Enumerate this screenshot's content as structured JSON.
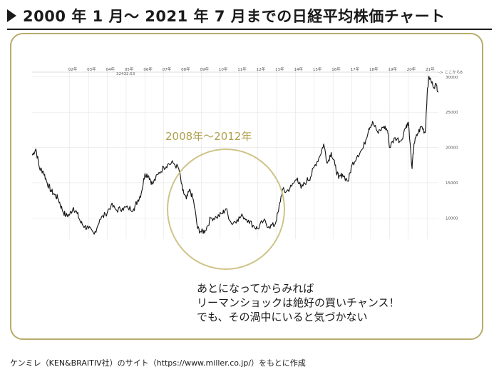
{
  "title": "2000 年 1 月〜 2021 年 7 月までの日経平均株価チャート",
  "colors": {
    "accent": "#b8ac6a",
    "line": "#111111",
    "grid": "#e4e4e4"
  },
  "chart_data": {
    "type": "line",
    "title": "",
    "x_tick_labels": [
      "02年",
      "03年",
      "04年",
      "05年",
      "06年",
      "07年",
      "08年",
      "09年",
      "10年",
      "11年",
      "12年",
      "13年",
      "14年",
      "15年",
      "16年",
      "17年",
      "18年",
      "19年",
      "20年",
      "21年"
    ],
    "y_tick_labels": [
      "30000",
      "25000",
      "20000",
      "15000",
      "10000"
    ],
    "ylim": [
      7000,
      31500
    ],
    "xlim": [
      2000.0,
      2021.6
    ],
    "readout": "32432.53",
    "corner_label": "-> ここから8",
    "highlight": {
      "label": "2008年〜2012年",
      "start": 2008,
      "end": 2012
    },
    "series": [
      {
        "x": [
          2000.0,
          2000.2,
          2000.4,
          2000.6,
          2000.8,
          2001.0,
          2001.2,
          2001.4,
          2001.6,
          2001.8,
          2002.0,
          2002.2,
          2002.4,
          2002.6,
          2002.8,
          2003.0,
          2003.3,
          2003.6,
          2003.9,
          2004.2,
          2004.5,
          2004.8,
          2005.1,
          2005.4,
          2005.6,
          2005.8,
          2006.0,
          2006.2,
          2006.4,
          2006.7,
          2007.0,
          2007.2,
          2007.5,
          2007.8,
          2008.0,
          2008.2,
          2008.4,
          2008.6,
          2008.8,
          2009.0,
          2009.2,
          2009.5,
          2009.8,
          2010.1,
          2010.3,
          2010.6,
          2010.9,
          2011.2,
          2011.5,
          2011.8,
          2012.0,
          2012.3,
          2012.6,
          2012.9,
          2013.1,
          2013.3,
          2013.5,
          2013.8,
          2014.1,
          2014.3,
          2014.6,
          2014.8,
          2015.0,
          2015.3,
          2015.5,
          2015.7,
          2015.9,
          2016.1,
          2016.3,
          2016.5,
          2016.8,
          2017.0,
          2017.3,
          2017.6,
          2017.9,
          2018.1,
          2018.4,
          2018.7,
          2018.9,
          2019.0,
          2019.3,
          2019.6,
          2019.9,
          2020.0,
          2020.2,
          2020.3,
          2020.5,
          2020.7,
          2020.9,
          2021.0,
          2021.1,
          2021.3,
          2021.5,
          2021.6
        ],
        "values": [
          18900,
          19800,
          17000,
          16600,
          15000,
          13900,
          13300,
          12700,
          11200,
          10300,
          10500,
          11500,
          10600,
          9300,
          8800,
          8500,
          7700,
          9800,
          10500,
          11800,
          11100,
          11400,
          11400,
          11300,
          12400,
          13500,
          16300,
          16000,
          14800,
          16200,
          17200,
          17600,
          17800,
          17000,
          13900,
          12700,
          14000,
          12200,
          8500,
          8000,
          8200,
          10000,
          10100,
          10600,
          11300,
          9200,
          9800,
          10300,
          9700,
          8800,
          8500,
          9600,
          8800,
          9000,
          11000,
          14000,
          13700,
          14500,
          15700,
          14200,
          15300,
          15800,
          17300,
          18800,
          20500,
          17800,
          19300,
          17500,
          15600,
          16200,
          15200,
          17500,
          18900,
          19900,
          22700,
          23700,
          22000,
          23000,
          22400,
          20000,
          21400,
          20900,
          23200,
          23600,
          17000,
          20500,
          22000,
          23000,
          22100,
          27500,
          30100,
          28800,
          28800,
          27900
        ]
      }
    ]
  },
  "annotation_lines": [
    "あとになってからみれば",
    "リーマンショックは絶好の買いチャンス！",
    "でも、その渦中にいると気づかない"
  ],
  "source": "ケンミレ（KEN&BRAITIV社）のサイト（https://www.miller.co.jp/）をもとに作成"
}
